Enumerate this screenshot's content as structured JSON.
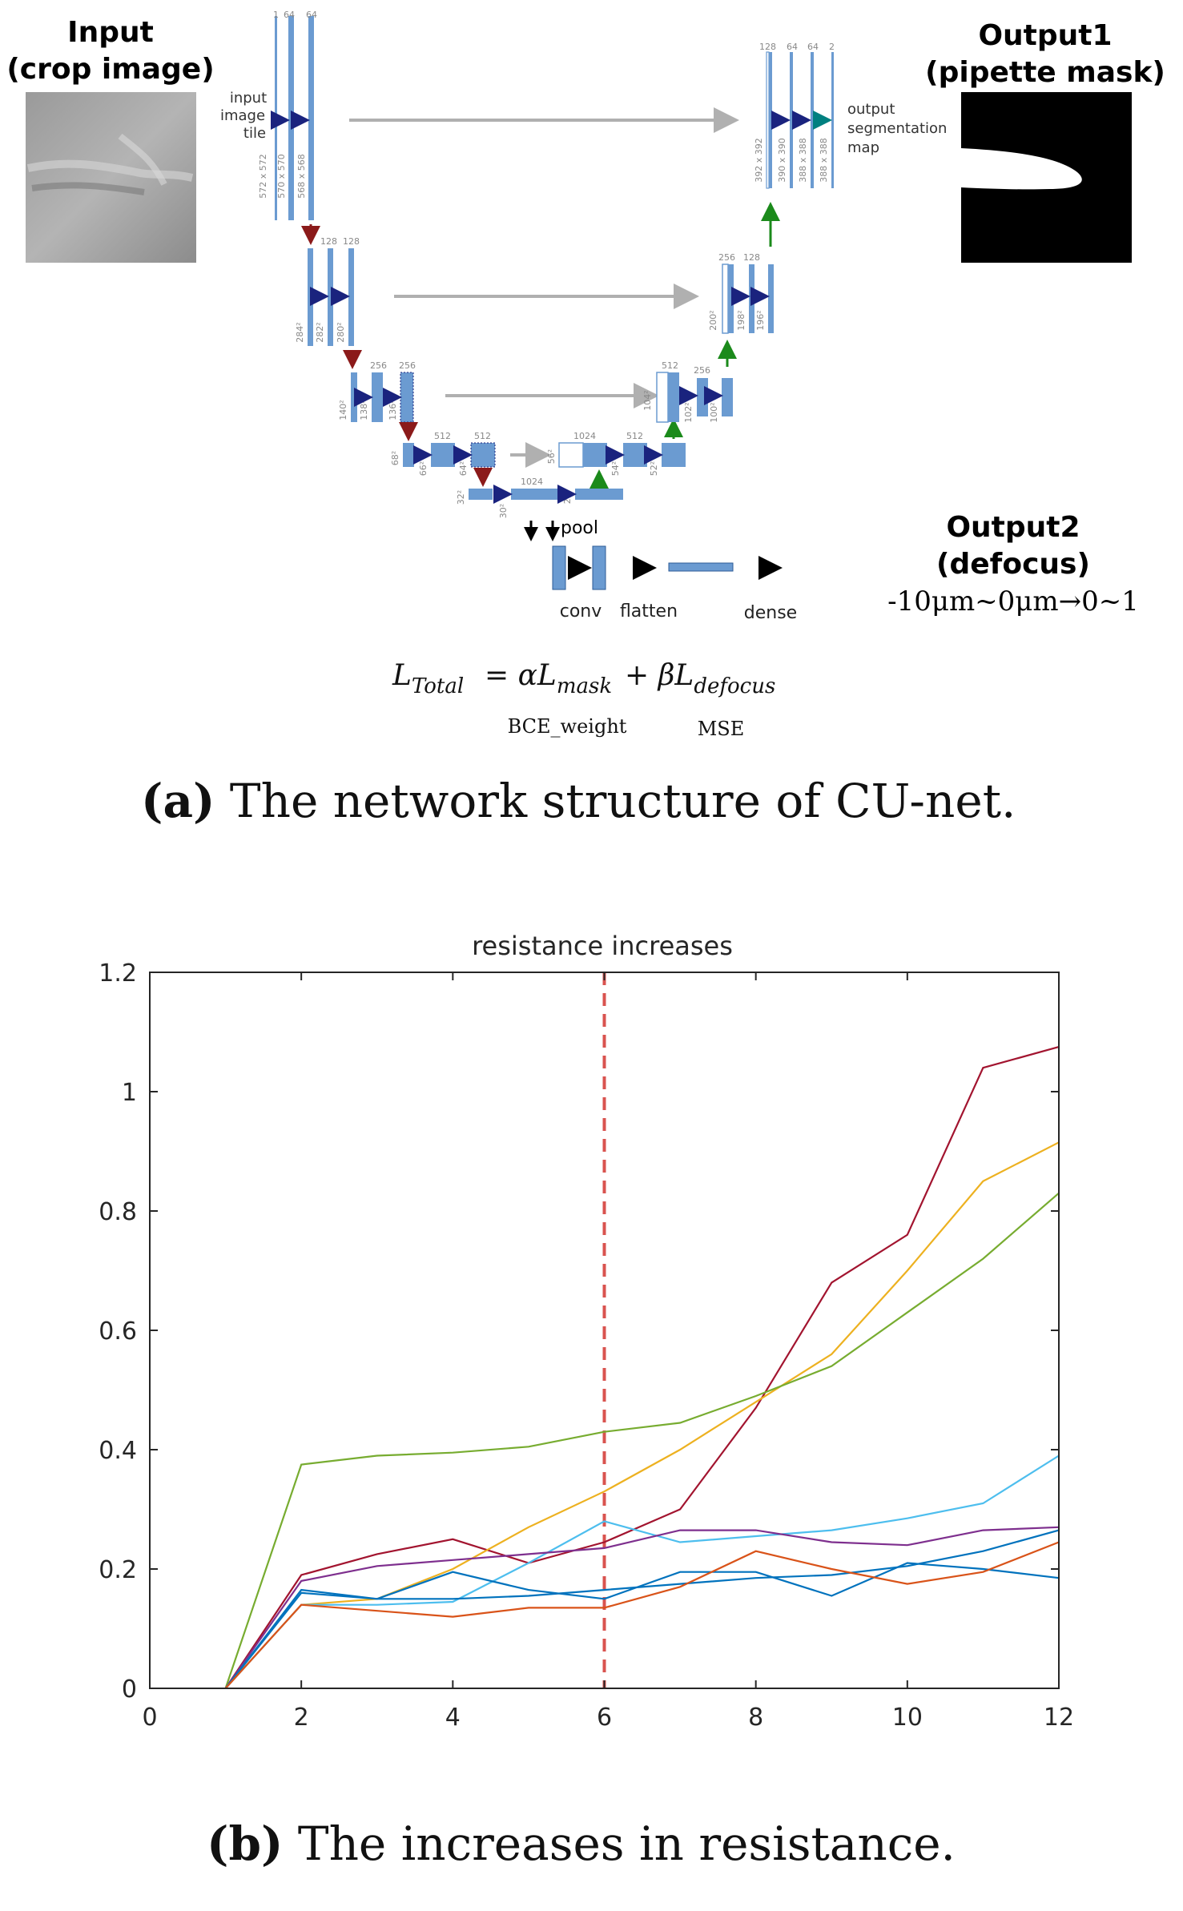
{
  "figure_a": {
    "input_title_line1": "Input",
    "input_title_line2": "(crop image)",
    "output1_title_line1": "Output1",
    "output1_title_line2": "(pipette mask)",
    "output2_title_line1": "Output2",
    "output2_title_line2": "(defocus)",
    "output2_range": "-10μm~0μm→0~1",
    "input_tile_label": [
      "input",
      "image",
      "tile"
    ],
    "output_map_label": [
      "output",
      "segmentation",
      "map"
    ],
    "channels_top_left": [
      "1",
      "64",
      "64"
    ],
    "channels_level2_left": [
      "128",
      "128"
    ],
    "channels_level3_left": [
      "256",
      "256"
    ],
    "channels_level4_left": [
      "512",
      "512"
    ],
    "channels_bottom": "1024",
    "channels_level4_right": [
      "1024",
      "512"
    ],
    "channels_level3_right": [
      "512",
      "256"
    ],
    "channels_level2_right": [
      "256",
      "128"
    ],
    "channels_top_right": [
      "128",
      "64",
      "64",
      "2"
    ],
    "dims_top_left": [
      "572 x 572",
      "570 x 570",
      "568 x 568"
    ],
    "dims_level2_left": [
      "284²",
      "282²",
      "280²"
    ],
    "dims_level3_left": [
      "140²",
      "138²",
      "136²"
    ],
    "dims_level4_left": [
      "68²",
      "66²",
      "64²"
    ],
    "dims_bottom": [
      "32²",
      "30²",
      "28²"
    ],
    "dims_level4_right": [
      "56²",
      "54²",
      "52²"
    ],
    "dims_level3_right": [
      "104²",
      "102²",
      "100²"
    ],
    "dims_level2_right": [
      "200²",
      "198²",
      "196²"
    ],
    "dims_top_right": [
      "392 x 392",
      "390 x 390",
      "388 x 388",
      "388 x 388"
    ],
    "pool_label": "pool",
    "conv_label": "conv",
    "flatten_label": "flatten",
    "dense_label": "dense",
    "loss_lhs": "L",
    "loss_lhs_sub": "Total",
    "loss_eq": "= αL",
    "loss_mask_sub": "mask",
    "loss_plus": "+ βL",
    "loss_defocus_sub": "defocus",
    "loss_bce": "BCE_weight",
    "loss_mse": "MSE",
    "caption_letter": "(a)",
    "caption_text": "The network structure of CU-net."
  },
  "figure_b": {
    "caption_letter": "(b)",
    "caption_text": "The increases in resistance."
  },
  "chart_data": {
    "type": "line",
    "title": "resistance increases",
    "xlabel": "",
    "ylabel": "",
    "xlim": [
      0,
      12
    ],
    "ylim": [
      0,
      1.2
    ],
    "xticks": [
      "0",
      "2",
      "4",
      "6",
      "8",
      "10",
      "12"
    ],
    "yticks": [
      "0",
      "0.2",
      "0.4",
      "0.6",
      "0.8",
      "1",
      "1.2"
    ],
    "grid": false,
    "legend": "none",
    "vertical_marker": {
      "x": 6,
      "color": "#d9534f",
      "style": "dashed"
    },
    "x": [
      1,
      2,
      3,
      4,
      5,
      6,
      7,
      8,
      9,
      10,
      11,
      12
    ],
    "series": [
      {
        "color": "#A2142F",
        "values": [
          0,
          0.19,
          0.225,
          0.25,
          0.21,
          0.245,
          0.3,
          0.47,
          0.68,
          0.76,
          1.04,
          1.075
        ]
      },
      {
        "color": "#EDB120",
        "values": [
          0,
          0.14,
          0.15,
          0.2,
          0.27,
          0.33,
          0.4,
          0.48,
          0.56,
          0.7,
          0.85,
          0.915
        ]
      },
      {
        "color": "#77AC30",
        "values": [
          0,
          0.375,
          0.39,
          0.395,
          0.405,
          0.43,
          0.445,
          0.49,
          0.54,
          0.63,
          0.72,
          0.83
        ]
      },
      {
        "color": "#4DBEEE",
        "values": [
          0,
          0.14,
          0.14,
          0.145,
          0.21,
          0.28,
          0.245,
          0.255,
          0.265,
          0.285,
          0.31,
          0.39
        ]
      },
      {
        "color": "#7E2F8E",
        "values": [
          0,
          0.18,
          0.205,
          0.215,
          0.225,
          0.235,
          0.265,
          0.265,
          0.245,
          0.24,
          0.265,
          0.27
        ]
      },
      {
        "color": "#0072BD",
        "values": [
          0,
          0.165,
          0.15,
          0.195,
          0.165,
          0.15,
          0.195,
          0.195,
          0.155,
          0.21,
          0.2,
          0.185
        ]
      },
      {
        "color": "#0072BD",
        "values": [
          0,
          0.16,
          0.15,
          0.15,
          0.155,
          0.165,
          0.175,
          0.185,
          0.19,
          0.205,
          0.23,
          0.265
        ]
      },
      {
        "color": "#D95319",
        "values": [
          0,
          0.14,
          0.13,
          0.12,
          0.135,
          0.135,
          0.17,
          0.23,
          0.2,
          0.175,
          0.195,
          0.245
        ]
      }
    ]
  }
}
